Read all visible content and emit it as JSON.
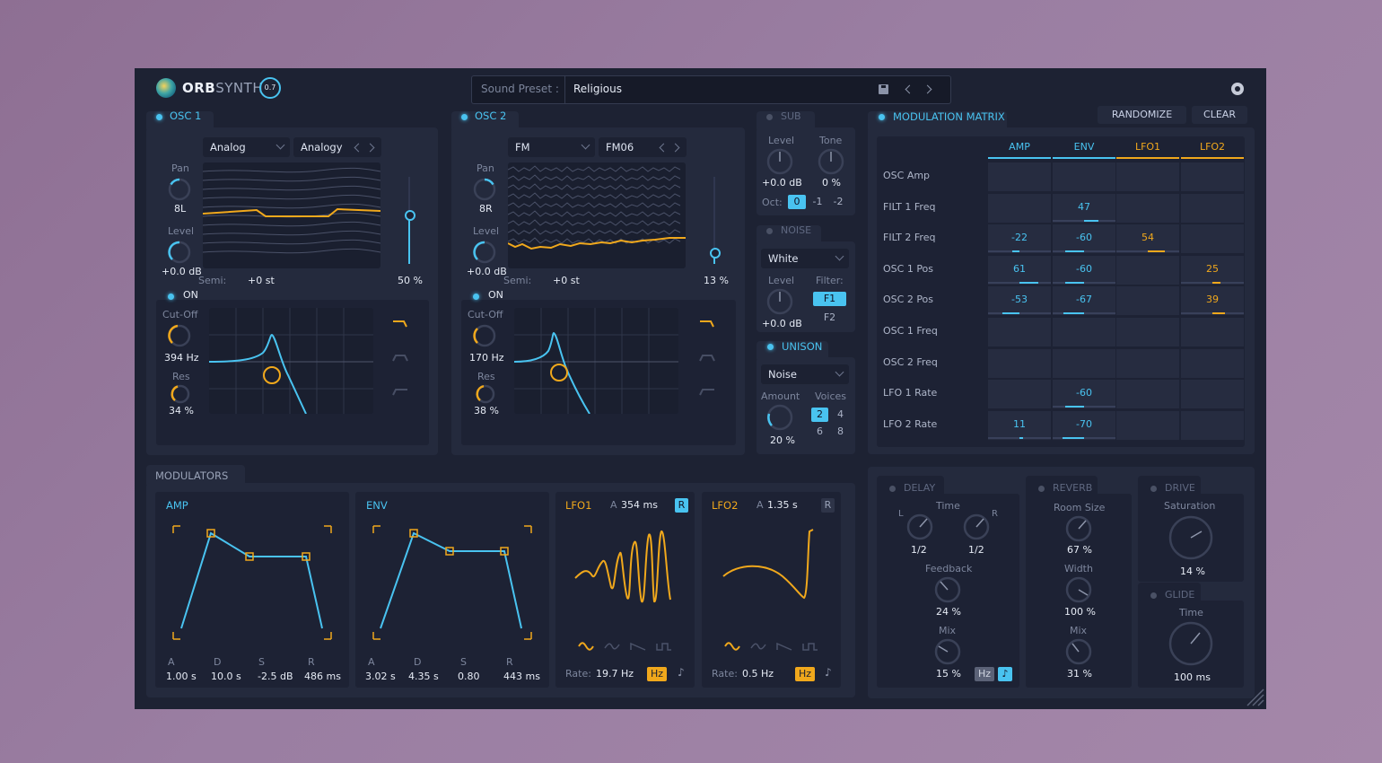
{
  "header": {
    "logo_a": "ORB",
    "logo_b": "SYNTH",
    "version": "0.7",
    "preset_label": "Sound Preset :",
    "preset_value": "Religious"
  },
  "osc1": {
    "title": "OSC 1",
    "type": "Analog",
    "wave": "Analogy",
    "pan_label": "Pan",
    "pan_value": "8L",
    "level_label": "Level",
    "level_value": "+0.0 dB",
    "semi_label": "Semi:",
    "semi_value": "+0 st",
    "mix_value": "50 %",
    "filter_on": "ON",
    "cutoff_label": "Cut-Off",
    "cutoff_value": "394 Hz",
    "res_label": "Res",
    "res_value": "34 %"
  },
  "osc2": {
    "title": "OSC 2",
    "type": "FM",
    "wave": "FM06",
    "pan_label": "Pan",
    "pan_value": "8R",
    "level_label": "Level",
    "level_value": "+0.0 dB",
    "semi_label": "Semi:",
    "semi_value": "+0 st",
    "mix_value": "13 %",
    "filter_on": "ON",
    "cutoff_label": "Cut-Off",
    "cutoff_value": "170 Hz",
    "res_label": "Res",
    "res_value": "38 %"
  },
  "sub": {
    "title": "SUB",
    "level_label": "Level",
    "level_value": "+0.0 dB",
    "tone_label": "Tone",
    "tone_value": "0 %",
    "oct_label": "Oct:",
    "oct_options": [
      "0",
      "-1",
      "-2"
    ]
  },
  "noise": {
    "title": "NOISE",
    "type": "White",
    "level_label": "Level",
    "level_value": "+0.0 dB",
    "filter_label": "Filter:",
    "filter_options": [
      "F1",
      "F2"
    ]
  },
  "unison": {
    "title": "UNISON",
    "type": "Noise",
    "amount_label": "Amount",
    "amount_value": "20 %",
    "voices_label": "Voices",
    "voices": [
      "2",
      "4",
      "6",
      "8"
    ]
  },
  "matrix": {
    "title": "MODULATION MATRIX",
    "randomize": "RANDOMIZE",
    "clear": "CLEAR",
    "columns": [
      "AMP",
      "ENV",
      "LFO1",
      "LFO2"
    ],
    "rows": [
      "OSC Amp",
      "FILT 1 Freq",
      "FILT 2 Freq",
      "OSC 1 Pos",
      "OSC 2 Pos",
      "OSC 1 Freq",
      "OSC 2 Freq",
      "LFO 1 Rate",
      "LFO 2 Rate"
    ],
    "values": [
      [
        "",
        "",
        "",
        ""
      ],
      [
        "",
        "47",
        "",
        ""
      ],
      [
        "-22",
        "-60",
        "54",
        ""
      ],
      [
        "61",
        "-60",
        "",
        "25"
      ],
      [
        "-53",
        "-67",
        "",
        "39"
      ],
      [
        "",
        "",
        "",
        ""
      ],
      [
        "",
        "",
        "",
        ""
      ],
      [
        "",
        "-60",
        "",
        ""
      ],
      [
        "11",
        "-70",
        "",
        ""
      ]
    ]
  },
  "modulators": {
    "title": "MODULATORS",
    "amp": {
      "title": "AMP",
      "labels": [
        "A",
        "D",
        "S",
        "R"
      ],
      "values": [
        "1.00 s",
        "10.0 s",
        "-2.5 dB",
        "486 ms"
      ]
    },
    "env": {
      "title": "ENV",
      "labels": [
        "A",
        "D",
        "S",
        "R"
      ],
      "values": [
        "3.02 s",
        "4.35 s",
        "0.80",
        "443 ms"
      ]
    },
    "lfo1": {
      "title": "LFO1",
      "a_label": "A",
      "a_value": "354 ms",
      "r": "R",
      "rate_label": "Rate:",
      "rate_value": "19.7 Hz",
      "unit": "Hz"
    },
    "lfo2": {
      "title": "LFO2",
      "a_label": "A",
      "a_value": "1.35 s",
      "r": "R",
      "rate_label": "Rate:",
      "rate_value": "0.5 Hz",
      "unit": "Hz"
    }
  },
  "fx": {
    "delay": {
      "title": "DELAY",
      "time_label": "Time",
      "l": "L",
      "r": "R",
      "time_l": "1/2",
      "time_r": "1/2",
      "feedback_label": "Feedback",
      "feedback_value": "24 %",
      "mix_label": "Mix",
      "mix_value": "15 %",
      "unit": "Hz"
    },
    "reverb": {
      "title": "REVERB",
      "room_label": "Room Size",
      "room_value": "67 %",
      "width_label": "Width",
      "width_value": "100 %",
      "mix_label": "Mix",
      "mix_value": "31 %"
    },
    "drive": {
      "title": "DRIVE",
      "sat_label": "Saturation",
      "sat_value": "14 %"
    },
    "glide": {
      "title": "GLIDE",
      "time_label": "Time",
      "time_value": "100 ms"
    }
  },
  "colors": {
    "accent": "#49c3f0",
    "orange": "#f0a81c",
    "background": "#1d2233",
    "panel": "#242a3d"
  }
}
